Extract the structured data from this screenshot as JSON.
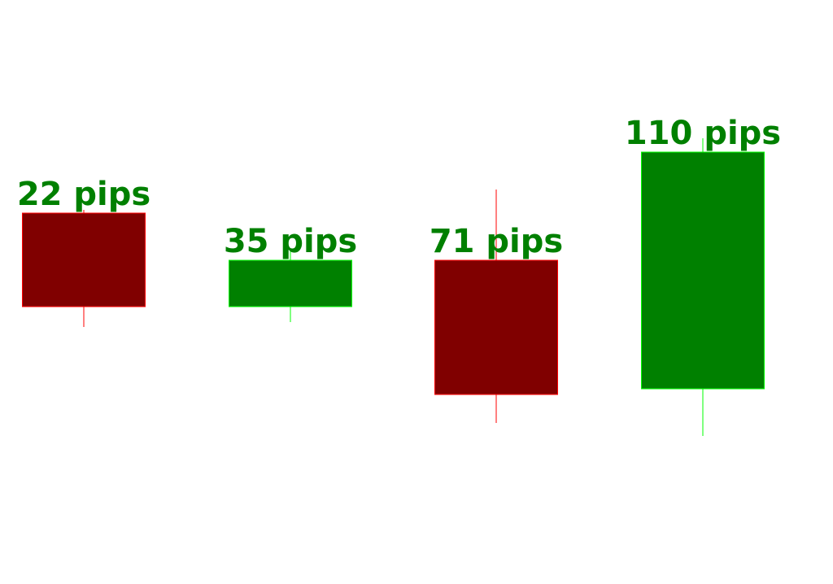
{
  "chart_data": {
    "type": "candlestick",
    "title": "",
    "xlabel": "",
    "ylabel": "",
    "ylim": [
      0,
      718
    ],
    "grid": false,
    "candles": [
      {
        "label": "22 pips",
        "direction": "bearish",
        "high": 460,
        "open": 456,
        "close": 341,
        "low": 316
      },
      {
        "label": "35 pips",
        "direction": "bullish",
        "high": 410,
        "open": 341,
        "close": 398,
        "low": 322
      },
      {
        "label": "71 pips",
        "direction": "bearish",
        "high": 485,
        "open": 398,
        "close": 233,
        "low": 198
      },
      {
        "label": "110 pips",
        "direction": "bullish",
        "high": 548,
        "open": 240,
        "close": 531,
        "low": 182
      }
    ],
    "colors": {
      "bearish_body": "#800000",
      "bearish_edge": "#ff0000",
      "bullish_body": "#008000",
      "bullish_edge": "#00ff00",
      "label": "#008000"
    }
  }
}
